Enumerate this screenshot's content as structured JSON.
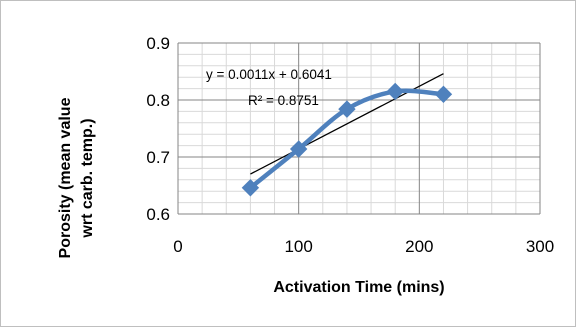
{
  "chart_data": {
    "type": "scatter",
    "title": "",
    "xlabel": "Activation Time (mins)",
    "ylabel": [
      "Porosity (mean value",
      "wrt carb. temp.)"
    ],
    "xlim": [
      0,
      300
    ],
    "ylim": [
      0.6,
      0.9
    ],
    "x_ticks": [
      0,
      100,
      200,
      300
    ],
    "x_tick_labels": [
      "0",
      "100",
      "200",
      "300"
    ],
    "y_ticks": [
      0.6,
      0.7,
      0.8,
      0.9
    ],
    "y_tick_labels": [
      "0.6",
      "0.7",
      "0.8",
      "0.9"
    ],
    "grid": true,
    "legend": "none",
    "series": [
      {
        "x": [
          60,
          100,
          140,
          180,
          220
        ],
        "y": [
          0.646,
          0.714,
          0.784,
          0.815,
          0.81
        ],
        "marker": "diamond",
        "line": "smooth",
        "color": "#4f81bd"
      }
    ],
    "trendline": {
      "type": "linear",
      "slope": 0.0011,
      "intercept": 0.6041,
      "x_range": [
        60,
        220
      ],
      "color": "#000000"
    },
    "annotations": [
      "y = 0.0011x + 0.6041",
      "R² = 0.8751"
    ]
  }
}
